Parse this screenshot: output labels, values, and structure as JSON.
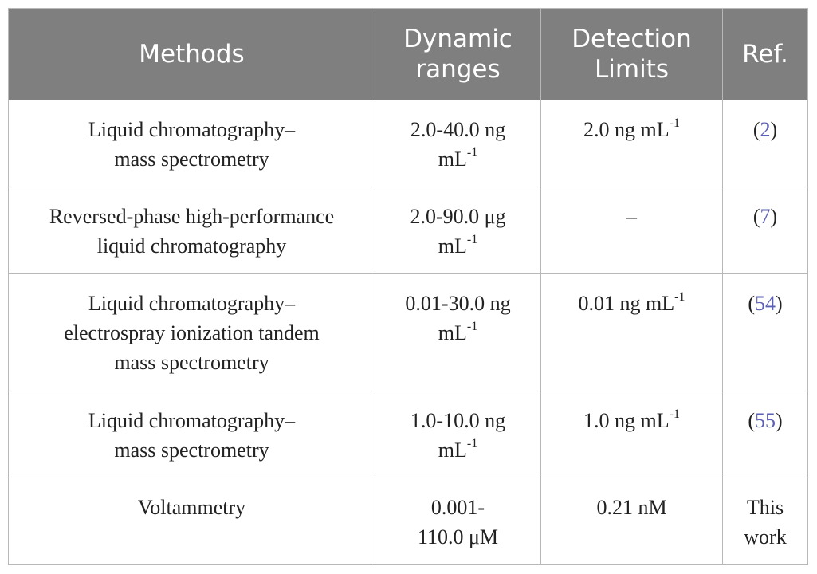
{
  "table": {
    "headers": {
      "methods": [
        "Methods"
      ],
      "dynamic_ranges": [
        "Dynamic",
        "ranges"
      ],
      "detection_limits": [
        "Detection",
        "Limits"
      ],
      "ref": [
        "Ref."
      ]
    },
    "rows": [
      {
        "method": [
          "Liquid chromatography–",
          "mass spectrometry"
        ],
        "range_l1": "2.0-40.0 ng",
        "range_unit": "mL",
        "range_exp": "-1",
        "limit_value": "2.0 ng mL",
        "limit_exp": "-1",
        "ref": "2"
      },
      {
        "method": [
          "Reversed-phase high-performance",
          "liquid chromatography"
        ],
        "range_l1": "2.0-90.0 μg",
        "range_unit": "mL",
        "range_exp": "-1",
        "limit_value": "–",
        "ref": "7"
      },
      {
        "method": [
          "Liquid chromatography–",
          "electrospray ionization tandem",
          "mass spectrometry"
        ],
        "range_l1": "0.01-30.0 ng",
        "range_unit": "mL",
        "range_exp": "-1",
        "limit_value": "0.01 ng mL",
        "limit_exp": "-1",
        "ref": "54"
      },
      {
        "method": [
          "Liquid chromatography–",
          "mass spectrometry"
        ],
        "range_l1": "1.0-10.0 ng",
        "range_unit": "mL",
        "range_exp": "-1",
        "limit_value": "1.0 ng mL",
        "limit_exp": "-1",
        "ref": "55"
      },
      {
        "method": [
          "Voltammetry"
        ],
        "range_l1": "0.001-",
        "range_l2": "110.0 μM",
        "limit_value": "0.21 nM",
        "ref_lines": [
          "This",
          "work"
        ]
      }
    ]
  }
}
